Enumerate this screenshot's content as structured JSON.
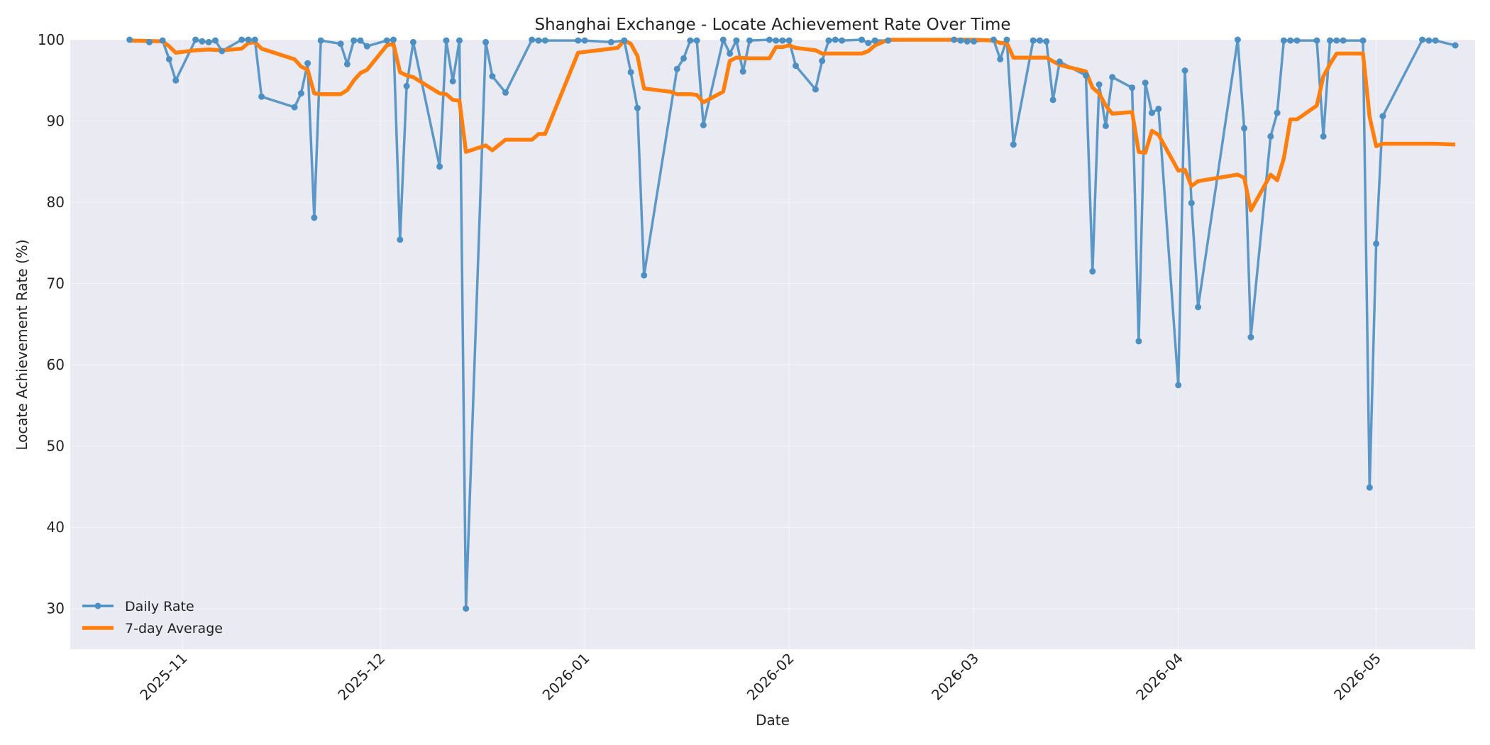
{
  "chart_data": {
    "type": "line",
    "title": "Shanghai Exchange - Locate Achievement Rate Over Time",
    "xlabel": "Date",
    "ylabel": "Locate Achievement Rate (%)",
    "xlim": [
      "2025-10-15",
      "2026-05-16"
    ],
    "ylim": [
      25,
      100
    ],
    "x_ticks": [
      "2025-11",
      "2025-12",
      "2026-01",
      "2026-02",
      "2026-03",
      "2026-04",
      "2026-05"
    ],
    "y_ticks": [
      30,
      40,
      50,
      60,
      70,
      80,
      90,
      100
    ],
    "grid": true,
    "legend_position": "lower-left",
    "colors": {
      "daily": "#4c8fc2",
      "average": "#ff7f0e",
      "plot_bg": "#eaeaf2"
    },
    "series": [
      {
        "name": "Daily Rate",
        "marker": "circle",
        "points": [
          [
            "2025-10-24",
            100
          ],
          [
            "2025-10-27",
            99.7
          ],
          [
            "2025-10-29",
            99.9
          ],
          [
            "2025-10-30",
            97.6
          ],
          [
            "2025-10-31",
            95.0
          ],
          [
            "2025-11-03",
            100
          ],
          [
            "2025-11-04",
            99.8
          ],
          [
            "2025-11-05",
            99.7
          ],
          [
            "2025-11-06",
            99.9
          ],
          [
            "2025-11-07",
            98.6
          ],
          [
            "2025-11-10",
            100
          ],
          [
            "2025-11-11",
            100
          ],
          [
            "2025-11-12",
            100
          ],
          [
            "2025-11-13",
            93.0
          ],
          [
            "2025-11-18",
            91.7
          ],
          [
            "2025-11-19",
            93.4
          ],
          [
            "2025-11-20",
            97.1
          ],
          [
            "2025-11-21",
            78.1
          ],
          [
            "2025-11-22",
            99.9
          ],
          [
            "2025-11-25",
            99.5
          ],
          [
            "2025-11-26",
            97.0
          ],
          [
            "2025-11-27",
            99.9
          ],
          [
            "2025-11-28",
            99.9
          ],
          [
            "2025-11-29",
            99.2
          ],
          [
            "2025-12-02",
            99.9
          ],
          [
            "2025-12-03",
            100
          ],
          [
            "2025-12-04",
            75.4
          ],
          [
            "2025-12-05",
            94.3
          ],
          [
            "2025-12-06",
            99.7
          ],
          [
            "2025-12-10",
            84.4
          ],
          [
            "2025-12-11",
            99.9
          ],
          [
            "2025-12-12",
            94.9
          ],
          [
            "2025-12-13",
            99.9
          ],
          [
            "2025-12-14",
            30.0
          ],
          [
            "2025-12-17",
            99.7
          ],
          [
            "2025-12-18",
            95.5
          ],
          [
            "2025-12-20",
            93.5
          ],
          [
            "2025-12-24",
            100
          ],
          [
            "2025-12-25",
            99.9
          ],
          [
            "2025-12-26",
            99.9
          ],
          [
            "2025-12-31",
            99.9
          ],
          [
            "2026-01-01",
            99.9
          ],
          [
            "2026-01-05",
            99.7
          ],
          [
            "2026-01-07",
            99.9
          ],
          [
            "2026-01-08",
            96.0
          ],
          [
            "2026-01-09",
            91.6
          ],
          [
            "2026-01-10",
            71.0
          ],
          [
            "2026-01-15",
            96.4
          ],
          [
            "2026-01-16",
            97.7
          ],
          [
            "2026-01-17",
            99.9
          ],
          [
            "2026-01-18",
            99.9
          ],
          [
            "2026-01-19",
            89.5
          ],
          [
            "2026-01-22",
            100
          ],
          [
            "2026-01-23",
            98.3
          ],
          [
            "2026-01-24",
            99.9
          ],
          [
            "2026-01-25",
            96.1
          ],
          [
            "2026-01-26",
            99.9
          ],
          [
            "2026-01-29",
            100
          ],
          [
            "2026-01-30",
            99.9
          ],
          [
            "2026-01-31",
            99.9
          ],
          [
            "2026-02-01",
            99.9
          ],
          [
            "2026-02-02",
            96.8
          ],
          [
            "2026-02-05",
            93.9
          ],
          [
            "2026-02-06",
            97.4
          ],
          [
            "2026-02-07",
            99.9
          ],
          [
            "2026-02-08",
            100
          ],
          [
            "2026-02-09",
            99.9
          ],
          [
            "2026-02-12",
            100
          ],
          [
            "2026-02-13",
            99.6
          ],
          [
            "2026-02-14",
            99.9
          ],
          [
            "2026-02-16",
            99.9
          ],
          [
            "2026-02-26",
            100
          ],
          [
            "2026-02-27",
            99.9
          ],
          [
            "2026-02-28",
            99.8
          ],
          [
            "2026-03-01",
            99.8
          ],
          [
            "2026-03-04",
            100
          ],
          [
            "2026-03-05",
            97.6
          ],
          [
            "2026-03-06",
            100
          ],
          [
            "2026-03-07",
            87.1
          ],
          [
            "2026-03-10",
            99.9
          ],
          [
            "2026-03-11",
            99.9
          ],
          [
            "2026-03-12",
            99.8
          ],
          [
            "2026-03-13",
            92.6
          ],
          [
            "2026-03-14",
            97.3
          ],
          [
            "2026-03-18",
            95.6
          ],
          [
            "2026-03-19",
            71.5
          ],
          [
            "2026-03-20",
            94.5
          ],
          [
            "2026-03-21",
            89.4
          ],
          [
            "2026-03-22",
            95.4
          ],
          [
            "2026-03-25",
            94.1
          ],
          [
            "2026-03-26",
            62.9
          ],
          [
            "2026-03-27",
            94.7
          ],
          [
            "2026-03-28",
            91.0
          ],
          [
            "2026-03-29",
            91.5
          ],
          [
            "2026-04-01",
            57.5
          ],
          [
            "2026-04-02",
            96.2
          ],
          [
            "2026-04-03",
            79.9
          ],
          [
            "2026-04-04",
            67.1
          ],
          [
            "2026-04-10",
            100
          ],
          [
            "2026-04-11",
            89.1
          ],
          [
            "2026-04-12",
            63.4
          ],
          [
            "2026-04-15",
            88.1
          ],
          [
            "2026-04-16",
            91.0
          ],
          [
            "2026-04-17",
            99.9
          ],
          [
            "2026-04-18",
            99.9
          ],
          [
            "2026-04-19",
            99.9
          ],
          [
            "2026-04-22",
            99.9
          ],
          [
            "2026-04-23",
            88.1
          ],
          [
            "2026-04-24",
            99.9
          ],
          [
            "2026-04-25",
            99.9
          ],
          [
            "2026-04-26",
            99.9
          ],
          [
            "2026-04-29",
            99.9
          ],
          [
            "2026-04-30",
            44.9
          ],
          [
            "2026-05-01",
            74.9
          ],
          [
            "2026-05-02",
            90.6
          ],
          [
            "2026-05-08",
            100
          ],
          [
            "2026-05-09",
            99.9
          ],
          [
            "2026-05-10",
            99.9
          ],
          [
            "2026-05-13",
            99.3
          ]
        ]
      },
      {
        "name": "7-day Average",
        "marker": "none",
        "points": [
          [
            "2025-10-24",
            99.9
          ],
          [
            "2025-10-29",
            99.8
          ],
          [
            "2025-10-30",
            99.2
          ],
          [
            "2025-10-31",
            98.4
          ],
          [
            "2025-11-03",
            98.7
          ],
          [
            "2025-11-05",
            98.8
          ],
          [
            "2025-11-07",
            98.7
          ],
          [
            "2025-11-10",
            98.9
          ],
          [
            "2025-11-11",
            99.6
          ],
          [
            "2025-11-12",
            99.7
          ],
          [
            "2025-11-13",
            98.9
          ],
          [
            "2025-11-18",
            97.6
          ],
          [
            "2025-11-19",
            96.7
          ],
          [
            "2025-11-20",
            96.3
          ],
          [
            "2025-11-21",
            93.4
          ],
          [
            "2025-11-22",
            93.3
          ],
          [
            "2025-11-25",
            93.3
          ],
          [
            "2025-11-26",
            93.8
          ],
          [
            "2025-11-27",
            95.0
          ],
          [
            "2025-11-28",
            95.9
          ],
          [
            "2025-11-29",
            96.3
          ],
          [
            "2025-12-02",
            99.3
          ],
          [
            "2025-12-03",
            99.5
          ],
          [
            "2025-12-04",
            96.0
          ],
          [
            "2025-12-05",
            95.6
          ],
          [
            "2025-12-06",
            95.4
          ],
          [
            "2025-12-10",
            93.4
          ],
          [
            "2025-12-11",
            93.3
          ],
          [
            "2025-12-12",
            92.6
          ],
          [
            "2025-12-13",
            92.5
          ],
          [
            "2025-12-14",
            86.2
          ],
          [
            "2025-12-17",
            87.0
          ],
          [
            "2025-12-18",
            86.4
          ],
          [
            "2025-12-20",
            87.7
          ],
          [
            "2025-12-24",
            87.7
          ],
          [
            "2025-12-25",
            88.4
          ],
          [
            "2025-12-26",
            88.4
          ],
          [
            "2025-12-31",
            98.4
          ],
          [
            "2026-01-05",
            98.9
          ],
          [
            "2026-01-06",
            99.0
          ],
          [
            "2026-01-07",
            99.9
          ],
          [
            "2026-01-08",
            99.5
          ],
          [
            "2026-01-09",
            98.0
          ],
          [
            "2026-01-10",
            94.0
          ],
          [
            "2026-01-14",
            93.6
          ],
          [
            "2026-01-15",
            93.3
          ],
          [
            "2026-01-17",
            93.3
          ],
          [
            "2026-01-18",
            93.2
          ],
          [
            "2026-01-19",
            92.3
          ],
          [
            "2026-01-22",
            93.6
          ],
          [
            "2026-01-23",
            97.4
          ],
          [
            "2026-01-24",
            97.8
          ],
          [
            "2026-01-26",
            97.7
          ],
          [
            "2026-01-29",
            97.7
          ],
          [
            "2026-01-30",
            99.1
          ],
          [
            "2026-01-31",
            99.1
          ],
          [
            "2026-02-01",
            99.3
          ],
          [
            "2026-02-02",
            99.0
          ],
          [
            "2026-02-05",
            98.7
          ],
          [
            "2026-02-06",
            98.3
          ],
          [
            "2026-02-12",
            98.3
          ],
          [
            "2026-02-13",
            98.6
          ],
          [
            "2026-02-14",
            99.3
          ],
          [
            "2026-02-16",
            100
          ],
          [
            "2026-03-01",
            100
          ],
          [
            "2026-03-04",
            99.9
          ],
          [
            "2026-03-05",
            99.6
          ],
          [
            "2026-03-06",
            99.6
          ],
          [
            "2026-03-07",
            97.8
          ],
          [
            "2026-03-10",
            97.8
          ],
          [
            "2026-03-12",
            97.8
          ],
          [
            "2026-03-14",
            96.9
          ],
          [
            "2026-03-18",
            96.1
          ],
          [
            "2026-03-19",
            94.1
          ],
          [
            "2026-03-20",
            93.4
          ],
          [
            "2026-03-21",
            91.9
          ],
          [
            "2026-03-22",
            90.9
          ],
          [
            "2026-03-25",
            91.1
          ],
          [
            "2026-03-26",
            86.2
          ],
          [
            "2026-03-27",
            86.1
          ],
          [
            "2026-03-28",
            88.8
          ],
          [
            "2026-03-29",
            88.3
          ],
          [
            "2026-04-01",
            83.9
          ],
          [
            "2026-04-02",
            84.0
          ],
          [
            "2026-04-03",
            82.0
          ],
          [
            "2026-04-04",
            82.6
          ],
          [
            "2026-04-10",
            83.4
          ],
          [
            "2026-04-11",
            83.0
          ],
          [
            "2026-04-12",
            79.0
          ],
          [
            "2026-04-15",
            83.4
          ],
          [
            "2026-04-16",
            82.7
          ],
          [
            "2026-04-17",
            85.4
          ],
          [
            "2026-04-18",
            90.2
          ],
          [
            "2026-04-19",
            90.2
          ],
          [
            "2026-04-22",
            91.9
          ],
          [
            "2026-04-23",
            95.5
          ],
          [
            "2026-04-24",
            97.0
          ],
          [
            "2026-04-25",
            98.3
          ],
          [
            "2026-04-29",
            98.3
          ],
          [
            "2026-04-30",
            90.5
          ],
          [
            "2026-05-01",
            86.9
          ],
          [
            "2026-05-02",
            87.2
          ],
          [
            "2026-05-10",
            87.2
          ],
          [
            "2026-05-13",
            87.1
          ]
        ]
      }
    ]
  }
}
